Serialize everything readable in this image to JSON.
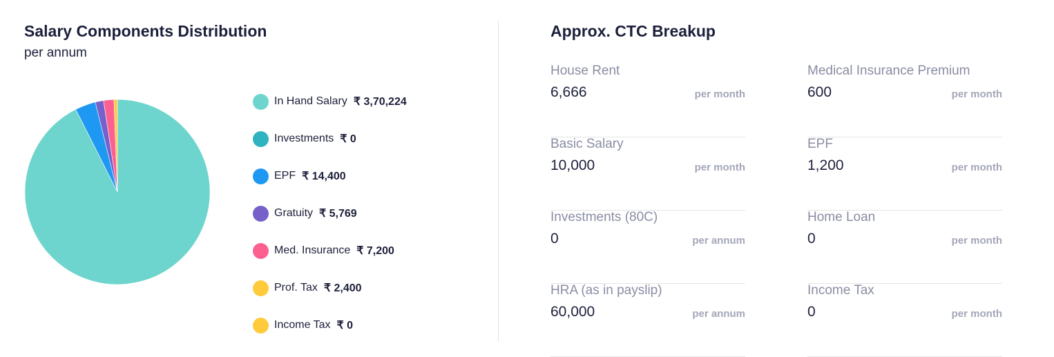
{
  "left": {
    "title": "Salary Components Distribution",
    "subtitle": "per annum"
  },
  "chart_data": {
    "type": "pie",
    "title": "Salary Components Distribution",
    "subtitle": "per annum",
    "categories": [
      "In Hand Salary",
      "Investments",
      "EPF",
      "Gratuity",
      "Med. Insurance",
      "Prof. Tax",
      "Income Tax"
    ],
    "values": [
      370224,
      0,
      14400,
      5769,
      7200,
      2400,
      0
    ],
    "value_labels": [
      "₹ 3,70,224",
      "₹ 0",
      "₹ 14,400",
      "₹ 5,769",
      "₹ 7,200",
      "₹ 2,400",
      "₹ 0"
    ],
    "colors": [
      "#6dd5cd",
      "#2fb3c0",
      "#1e98f2",
      "#7660c9",
      "#fe5f91",
      "#ffcb3a",
      "#ffcb3a"
    ],
    "legend": "right",
    "start": "top",
    "direction": "clockwise"
  },
  "right": {
    "title": "Approx. CTC Breakup",
    "items": [
      {
        "label": "House Rent",
        "value": "6,666",
        "period": "per month"
      },
      {
        "label": "Medical Insurance Premium",
        "value": "600",
        "period": "per month"
      },
      {
        "label": "Basic Salary",
        "value": "10,000",
        "period": "per month"
      },
      {
        "label": "EPF",
        "value": "1,200",
        "period": "per month"
      },
      {
        "label": "Investments (80C)",
        "value": "0",
        "period": "per annum"
      },
      {
        "label": "Home Loan",
        "value": "0",
        "period": "per month"
      },
      {
        "label": "HRA (as in payslip)",
        "value": "60,000",
        "period": "per annum"
      },
      {
        "label": "Income Tax",
        "value": "0",
        "period": "per month"
      }
    ]
  }
}
